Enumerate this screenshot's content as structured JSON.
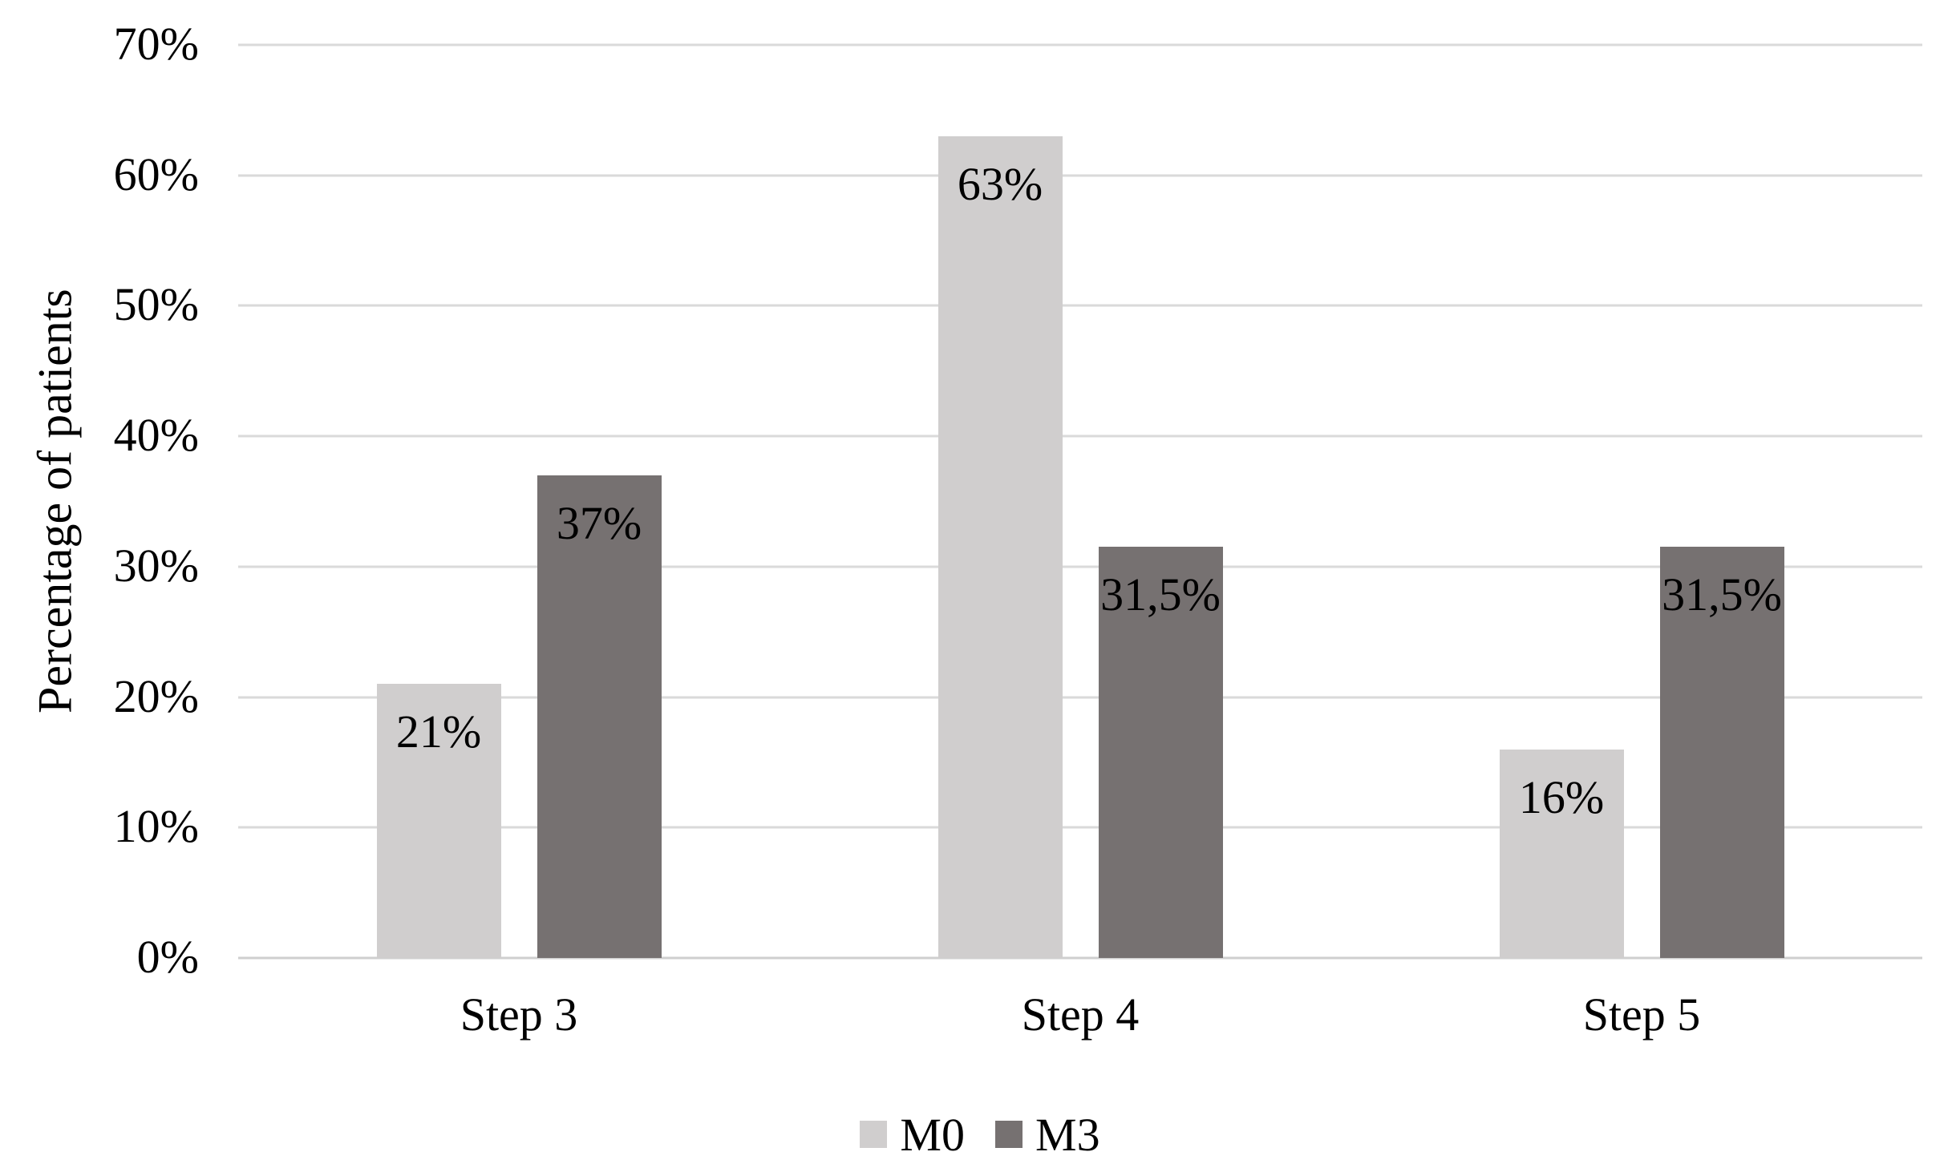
{
  "chart_data": {
    "type": "bar",
    "title": "",
    "xlabel": "",
    "ylabel": "Percentage of patients",
    "categories": [
      "Step 3",
      "Step 4",
      "Step 5"
    ],
    "series": [
      {
        "name": "M0",
        "color": "#d0cece",
        "values": [
          21,
          63,
          16
        ],
        "value_labels": [
          "21%",
          "63%",
          "16%"
        ]
      },
      {
        "name": "M3",
        "color": "#767171",
        "values": [
          37,
          31.5,
          31.5
        ],
        "value_labels": [
          "37%",
          "31,5%",
          "31,5%"
        ]
      }
    ],
    "y_axis": {
      "min": 0,
      "max": 70,
      "tick_step": 10,
      "tick_labels": [
        "0%",
        "10%",
        "20%",
        "30%",
        "40%",
        "50%",
        "60%",
        "70%"
      ]
    },
    "grid": true,
    "legend_position": "bottom",
    "colors": {
      "gridline": "#dadada",
      "axis_line": "#cfcfcf",
      "text": "#000000",
      "background": "#ffffff"
    }
  }
}
